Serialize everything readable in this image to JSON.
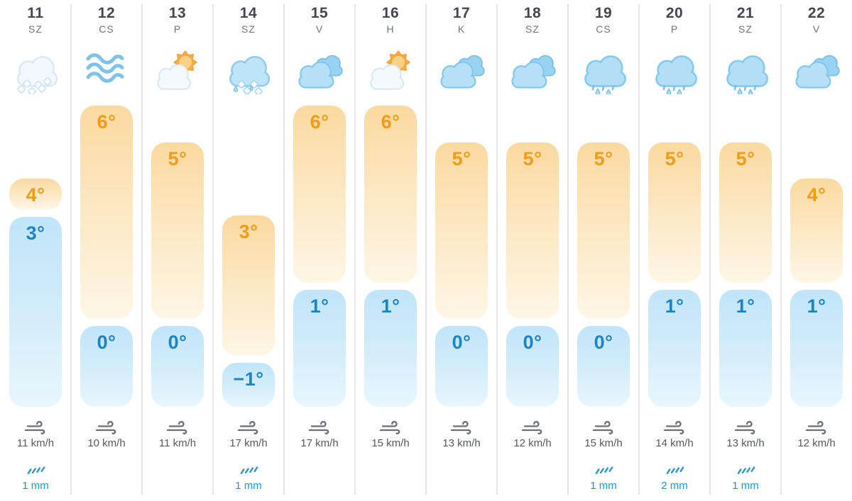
{
  "colors": {
    "high_temp_text": "#F29B13",
    "high_bar_gradient_top": "#FBD9A1",
    "high_bar_gradient_bottom": "#FEF6E6",
    "low_temp_text": "#1C84C6",
    "low_bar_gradient_top": "#C0E5F9",
    "low_bar_gradient_bottom": "#E9F6FD",
    "day_number_text": "#43474D",
    "weekday_text": "#6F747A",
    "wind_text": "#55595F",
    "precip_text": "#2196D3",
    "column_divider": "#E3E5E8"
  },
  "units": {
    "wind": "km/h",
    "precipitation": "mm"
  },
  "days": [
    {
      "date": "11",
      "weekday": "SZ",
      "icon": "snow",
      "high_label": "4°",
      "low_label": "3°",
      "high_c": 4,
      "low_c": 3,
      "wind": "11 km/h",
      "wind_kmh": 11,
      "precip": "1 mm",
      "precip_mm": 1
    },
    {
      "date": "12",
      "weekday": "CS",
      "icon": "wind",
      "high_label": "6°",
      "low_label": "0°",
      "high_c": 6,
      "low_c": 0,
      "wind": "10 km/h",
      "wind_kmh": 10,
      "precip": "",
      "precip_mm": 0
    },
    {
      "date": "13",
      "weekday": "P",
      "icon": "partly-sunny",
      "high_label": "5°",
      "low_label": "0°",
      "high_c": 5,
      "low_c": 0,
      "wind": "11 km/h",
      "wind_kmh": 11,
      "precip": "",
      "precip_mm": 0
    },
    {
      "date": "14",
      "weekday": "SZ",
      "icon": "sleet",
      "high_label": "3°",
      "low_label": "−1°",
      "high_c": 3,
      "low_c": -1,
      "wind": "17 km/h",
      "wind_kmh": 17,
      "precip": "1 mm",
      "precip_mm": 1
    },
    {
      "date": "15",
      "weekday": "V",
      "icon": "cloudy",
      "high_label": "6°",
      "low_label": "1°",
      "high_c": 6,
      "low_c": 1,
      "wind": "17 km/h",
      "wind_kmh": 17,
      "precip": "",
      "precip_mm": 0
    },
    {
      "date": "16",
      "weekday": "H",
      "icon": "partly-sunny",
      "high_label": "6°",
      "low_label": "1°",
      "high_c": 6,
      "low_c": 1,
      "wind": "15 km/h",
      "wind_kmh": 15,
      "precip": "",
      "precip_mm": 0
    },
    {
      "date": "17",
      "weekday": "K",
      "icon": "cloudy",
      "high_label": "5°",
      "low_label": "0°",
      "high_c": 5,
      "low_c": 0,
      "wind": "13 km/h",
      "wind_kmh": 13,
      "precip": "",
      "precip_mm": 0
    },
    {
      "date": "18",
      "weekday": "SZ",
      "icon": "cloudy",
      "high_label": "5°",
      "low_label": "0°",
      "high_c": 5,
      "low_c": 0,
      "wind": "12 km/h",
      "wind_kmh": 12,
      "precip": "",
      "precip_mm": 0
    },
    {
      "date": "19",
      "weekday": "CS",
      "icon": "rain",
      "high_label": "5°",
      "low_label": "0°",
      "high_c": 5,
      "low_c": 0,
      "wind": "15 km/h",
      "wind_kmh": 15,
      "precip": "1 mm",
      "precip_mm": 1
    },
    {
      "date": "20",
      "weekday": "P",
      "icon": "rain",
      "high_label": "5°",
      "low_label": "1°",
      "high_c": 5,
      "low_c": 1,
      "wind": "14 km/h",
      "wind_kmh": 14,
      "precip": "2 mm",
      "precip_mm": 2
    },
    {
      "date": "21",
      "weekday": "SZ",
      "icon": "rain",
      "high_label": "5°",
      "low_label": "1°",
      "high_c": 5,
      "low_c": 1,
      "wind": "13 km/h",
      "wind_kmh": 13,
      "precip": "1 mm",
      "precip_mm": 1
    },
    {
      "date": "22",
      "weekday": "V",
      "icon": "cloudy",
      "high_label": "4°",
      "low_label": "1°",
      "high_c": 4,
      "low_c": 1,
      "wind": "12 km/h",
      "wind_kmh": 12,
      "precip": "",
      "precip_mm": 0
    }
  ]
}
